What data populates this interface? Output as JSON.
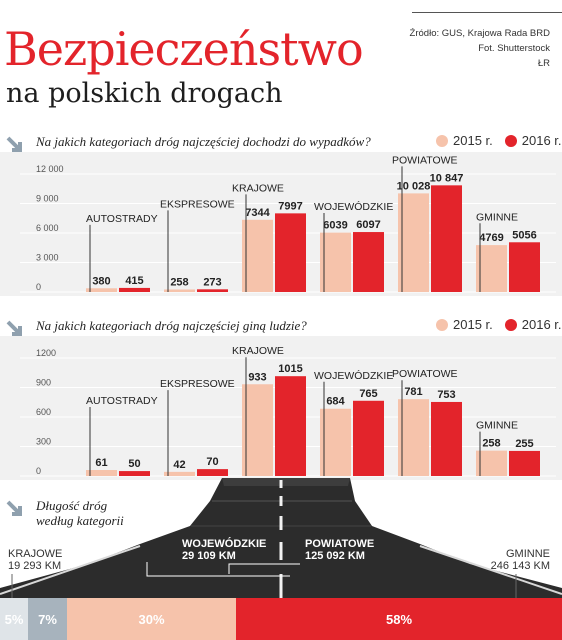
{
  "header": {
    "title": "Bezpieczeństwo",
    "subtitle": "na polskich drogach",
    "source_line1": "Źródło: GUS, Krajowa Rada BRD",
    "source_line2": "Fot. Shutterstock",
    "author": "ŁR"
  },
  "legend": {
    "label_2015": "2015 r.",
    "label_2016": "2016 r."
  },
  "colors": {
    "y2015": "#f6c3ab",
    "y2016": "#e3242b",
    "band": "#f1f1f1",
    "arrow": "#8fa0ae"
  },
  "chart_data": [
    {
      "type": "bar",
      "title": "Na jakich kategoriach dróg najczęściej dochodzi do wypadków?",
      "categories": [
        "AUTOSTRADY",
        "EKSPRESOWE",
        "KRAJOWE",
        "WOJEWÓDZKIE",
        "POWIATOWE",
        "GMINNE"
      ],
      "series": [
        {
          "name": "2015 r.",
          "values": [
            380,
            258,
            7344,
            6039,
            10028,
            4769
          ],
          "labels": [
            "380",
            "258",
            "7344",
            "6039",
            "10 028",
            "4769"
          ]
        },
        {
          "name": "2016 r.",
          "values": [
            415,
            273,
            7997,
            6097,
            10847,
            5056
          ],
          "labels": [
            "415",
            "273",
            "7997",
            "6097",
            "10 847",
            "5056"
          ]
        }
      ],
      "ylim": [
        0,
        12000
      ],
      "yticks": [
        0,
        3000,
        6000,
        9000,
        12000
      ],
      "ytick_labels": [
        "0",
        "3 000",
        "6 000",
        "9 000",
        "12 000"
      ],
      "grid": true
    },
    {
      "type": "bar",
      "title": "Na jakich kategoriach dróg najczęściej giną ludzie?",
      "categories": [
        "AUTOSTRADY",
        "EKSPRESOWE",
        "KRAJOWE",
        "WOJEWÓDZKIE",
        "POWIATOWE",
        "GMINNE"
      ],
      "series": [
        {
          "name": "2015 r.",
          "values": [
            61,
            42,
            933,
            684,
            781,
            258
          ],
          "labels": [
            "61",
            "42",
            "933",
            "684",
            "781",
            "258"
          ]
        },
        {
          "name": "2016 r.",
          "values": [
            50,
            70,
            1015,
            765,
            753,
            255
          ],
          "labels": [
            "50",
            "70",
            "1015",
            "765",
            "753",
            "255"
          ]
        }
      ],
      "ylim": [
        0,
        1200
      ],
      "yticks": [
        0,
        300,
        600,
        900,
        1200
      ],
      "ytick_labels": [
        "0",
        "300",
        "600",
        "900",
        "1200"
      ],
      "grid": true
    }
  ],
  "road_length": {
    "title_line1": "Długość dróg",
    "title_line2": "według kategorii",
    "krajowe_name": "KRAJOWE",
    "krajowe_km": "19 293 KM",
    "wojewodzkie_name": "WOJEWÓDZKIE",
    "wojewodzkie_km": "29 109 KM",
    "powiatowe_name": "POWIATOWE",
    "powiatowe_km": "125 092 KM",
    "gminne_name": "GMINNE",
    "gminne_km": "246 143 KM",
    "segments": [
      {
        "label": "5%",
        "share": 5,
        "color": "#dfe4e8"
      },
      {
        "label": "7%",
        "share": 7,
        "color": "#a7b3bd"
      },
      {
        "label": "30%",
        "share": 30,
        "color": "#f6c3ab"
      },
      {
        "label": "58%",
        "share": 58,
        "color": "#e3242b"
      }
    ]
  }
}
